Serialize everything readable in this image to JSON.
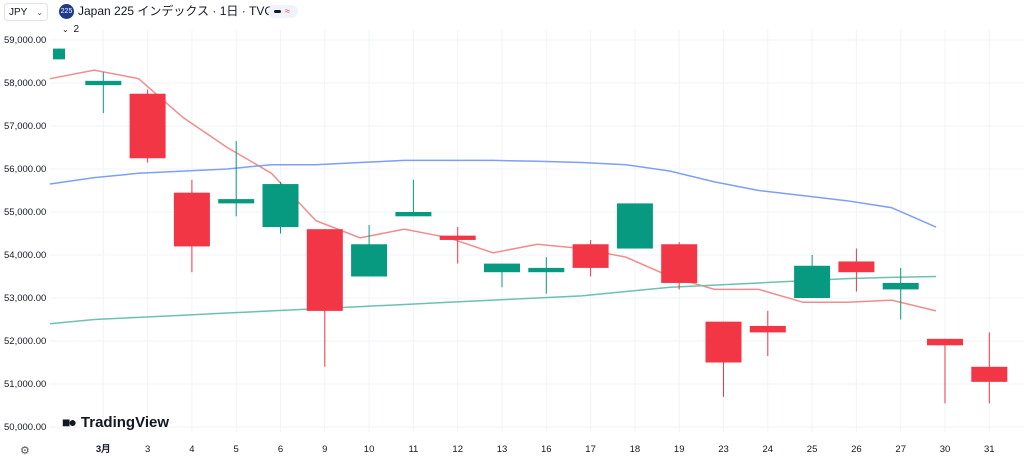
{
  "header": {
    "currency": "JPY",
    "symbol_badge": "225",
    "title": "Japan 225 インデックス · 1日 · TVC",
    "pill_sign": "≈",
    "indicator_count": "2"
  },
  "branding": {
    "logo_text": "TradingView"
  },
  "colors": {
    "up": "#089981",
    "down": "#f23645",
    "ma_fast": "#f28c8c",
    "ma_mid": "#7d9ff5",
    "ma_slow": "#6cc2b0"
  },
  "chart_data": {
    "type": "candlestick",
    "title": "Japan 225 インデックス · 1日 · TVC",
    "ylim": [
      49800,
      59300
    ],
    "yticks": [
      59000,
      58000,
      57000,
      56000,
      55000,
      54000,
      53000,
      52000,
      51000,
      50000
    ],
    "ytick_labels": [
      "59,000.00",
      "58,000.00",
      "57,000.00",
      "56,000.00",
      "55,000.00",
      "54,000.00",
      "53,000.00",
      "52,000.00",
      "51,000.00",
      "50,000.00"
    ],
    "x_tick_labels": [
      "3月",
      "3",
      "4",
      "5",
      "6",
      "9",
      "10",
      "11",
      "12",
      "13",
      "16",
      "17",
      "18",
      "19",
      "23",
      "24",
      "25",
      "26",
      "27",
      "30",
      "31"
    ],
    "candles": [
      {
        "date": "",
        "open": 58550,
        "high": 58800,
        "low": 58550,
        "close": 58800
      },
      {
        "date": "3月",
        "open": 57950,
        "high": 58250,
        "low": 57300,
        "close": 58050
      },
      {
        "date": "3",
        "open": 57750,
        "high": 57850,
        "low": 56150,
        "close": 56250
      },
      {
        "date": "4",
        "open": 55450,
        "high": 55750,
        "low": 53600,
        "close": 54200
      },
      {
        "date": "5",
        "open": 55200,
        "high": 56650,
        "low": 54900,
        "close": 55300
      },
      {
        "date": "6",
        "open": 54650,
        "high": 55700,
        "low": 54500,
        "close": 55650
      },
      {
        "date": "9",
        "open": 54600,
        "high": 54600,
        "low": 51400,
        "close": 52700
      },
      {
        "date": "10",
        "open": 53500,
        "high": 54700,
        "low": 53500,
        "close": 54250
      },
      {
        "date": "11",
        "open": 54900,
        "high": 55750,
        "low": 54900,
        "close": 55000
      },
      {
        "date": "12",
        "open": 54450,
        "high": 54650,
        "low": 53800,
        "close": 54350
      },
      {
        "date": "13",
        "open": 53600,
        "high": 53800,
        "low": 53250,
        "close": 53800
      },
      {
        "date": "16",
        "open": 53600,
        "high": 53950,
        "low": 53100,
        "close": 53700
      },
      {
        "date": "17",
        "open": 54250,
        "high": 54350,
        "low": 53500,
        "close": 53700
      },
      {
        "date": "18",
        "open": 54150,
        "high": 55200,
        "low": 54150,
        "close": 55200
      },
      {
        "date": "19",
        "open": 54250,
        "high": 54300,
        "low": 53200,
        "close": 53350
      },
      {
        "date": "23",
        "open": 52450,
        "high": 52450,
        "low": 50700,
        "close": 51500
      },
      {
        "date": "24",
        "open": 52350,
        "high": 52700,
        "low": 51650,
        "close": 52200
      },
      {
        "date": "25",
        "open": 53000,
        "high": 54000,
        "low": 53000,
        "close": 53750
      },
      {
        "date": "26",
        "open": 53850,
        "high": 54150,
        "low": 53150,
        "close": 53600
      },
      {
        "date": "27",
        "open": 53200,
        "high": 53700,
        "low": 52500,
        "close": 53350
      },
      {
        "date": "30",
        "open": 52050,
        "high": 52050,
        "low": 50550,
        "close": 51900
      },
      {
        "date": "31",
        "open": 51400,
        "high": 52200,
        "low": 50550,
        "close": 51050
      }
    ],
    "series": [
      {
        "values": [
          58100,
          58300,
          58100,
          57200,
          56500,
          55900,
          54800,
          54400,
          54600,
          54400,
          54050,
          54250,
          54150,
          53950,
          53500,
          53200,
          53200,
          52900,
          52900,
          52950,
          52700
        ]
      },
      {
        "values": [
          55650,
          55800,
          55900,
          55950,
          56000,
          56100,
          56100,
          56150,
          56200,
          56200,
          56200,
          56180,
          56150,
          56100,
          55950,
          55700,
          55500,
          55380,
          55260,
          55100,
          54650
        ]
      },
      {
        "values": [
          52400,
          52500,
          52550,
          52600,
          52650,
          52700,
          52750,
          52800,
          52850,
          52900,
          52950,
          53000,
          53050,
          53150,
          53250,
          53300,
          53350,
          53400,
          53450,
          53480,
          53500
        ]
      }
    ]
  }
}
